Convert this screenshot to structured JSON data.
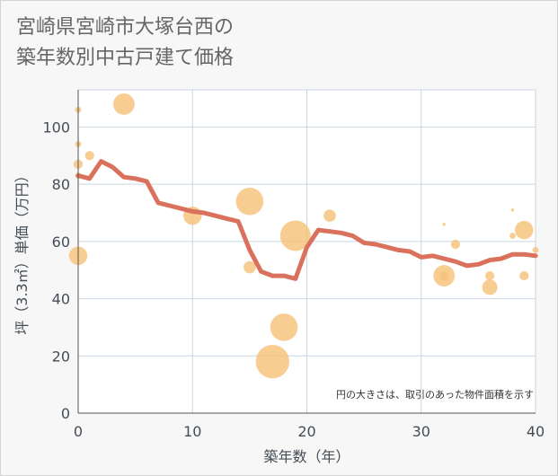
{
  "title_lines": [
    "宮崎県宮崎市大塚台西の",
    "築年数別中古戸建て価格"
  ],
  "chart_data": {
    "type": "scatter",
    "title": "宮崎県宮崎市大塚台西の築年数別中古戸建て価格",
    "xlabel": "築年数（年）",
    "ylabel": "坪（3.3㎡）単価（万円）",
    "xlim": [
      0,
      40
    ],
    "ylim": [
      0,
      113
    ],
    "xticks": [
      0,
      10,
      20,
      30,
      40
    ],
    "yticks": [
      0,
      20,
      40,
      60,
      80,
      100
    ],
    "grid": true,
    "note": "円の大きさは、取引のあった物件面積を示す",
    "colors": {
      "bubble": "#f5c27a",
      "line": "#d9715c",
      "grid": "#c9d6e2",
      "plot_bg": "#ffffff"
    },
    "points": [
      {
        "x": 0,
        "y": 106,
        "size": 2
      },
      {
        "x": 0,
        "y": 94,
        "size": 2
      },
      {
        "x": 0,
        "y": 87,
        "size": 3
      },
      {
        "x": 0,
        "y": 83,
        "size": 2
      },
      {
        "x": 0,
        "y": 55,
        "size": 6
      },
      {
        "x": 1,
        "y": 90,
        "size": 3
      },
      {
        "x": 4,
        "y": 108,
        "size": 7
      },
      {
        "x": 10,
        "y": 69,
        "size": 6
      },
      {
        "x": 15,
        "y": 74,
        "size": 9
      },
      {
        "x": 15,
        "y": 51,
        "size": 4
      },
      {
        "x": 17,
        "y": 18,
        "size": 11
      },
      {
        "x": 18,
        "y": 30,
        "size": 9
      },
      {
        "x": 19,
        "y": 62,
        "size": 10
      },
      {
        "x": 22,
        "y": 69,
        "size": 4
      },
      {
        "x": 32,
        "y": 66,
        "size": 1
      },
      {
        "x": 32,
        "y": 48,
        "size": 7
      },
      {
        "x": 32,
        "y": 48,
        "size": 3
      },
      {
        "x": 33,
        "y": 59,
        "size": 3
      },
      {
        "x": 36,
        "y": 44,
        "size": 5
      },
      {
        "x": 36,
        "y": 48,
        "size": 3
      },
      {
        "x": 38,
        "y": 71,
        "size": 1
      },
      {
        "x": 38,
        "y": 62,
        "size": 2
      },
      {
        "x": 39,
        "y": 64,
        "size": 6
      },
      {
        "x": 39,
        "y": 48,
        "size": 3
      },
      {
        "x": 40,
        "y": 57,
        "size": 2
      }
    ],
    "line": {
      "x": [
        0,
        1,
        2,
        3,
        4,
        5,
        6,
        7,
        8,
        9,
        10,
        11,
        12,
        13,
        14,
        15,
        16,
        17,
        18,
        19,
        20,
        21,
        22,
        23,
        24,
        25,
        26,
        27,
        28,
        29,
        30,
        31,
        32,
        33,
        34,
        35,
        36,
        37,
        38,
        39,
        40
      ],
      "y": [
        83,
        82,
        88,
        86,
        82.5,
        82,
        81,
        73.5,
        72.5,
        71.5,
        70.5,
        70,
        69,
        68,
        67,
        57,
        49.5,
        48,
        48,
        47,
        58,
        64,
        63.5,
        63,
        62,
        59.5,
        59,
        58,
        57,
        56.5,
        54.5,
        55,
        54,
        53,
        51.5,
        52,
        53.5,
        54,
        55.5,
        55.5,
        55
      ]
    }
  }
}
